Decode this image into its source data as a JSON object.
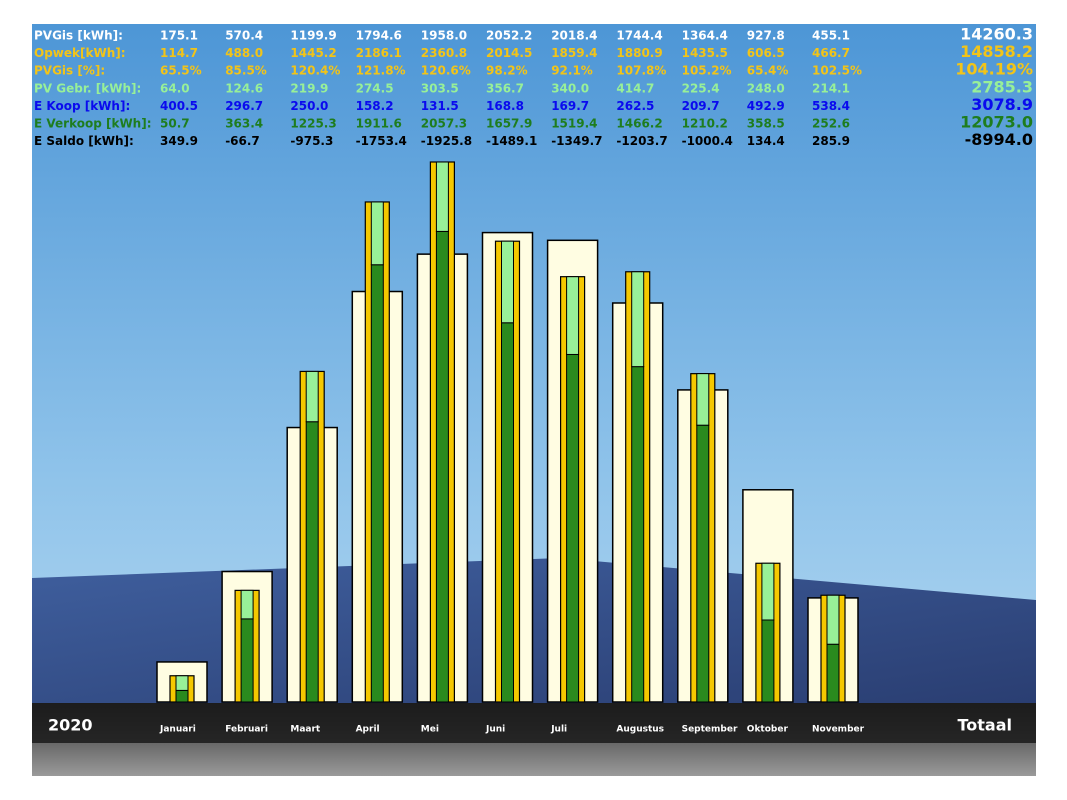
{
  "chart_data": {
    "type": "bar",
    "year": "2020",
    "total_title": "Totaal",
    "categories": [
      "Januari",
      "Februari",
      "Maart",
      "April",
      "Mei",
      "Juni",
      "Juli",
      "Augustus",
      "September",
      "Oktober",
      "November"
    ],
    "series": [
      {
        "name": "PVGis [kWh]:",
        "color": "#ffffff",
        "bar_color": "#fffde2",
        "values": [
          175.1,
          570.4,
          1199.9,
          1794.6,
          1958.0,
          2052.2,
          2018.4,
          1744.4,
          1364.4,
          927.8,
          455.1
        ],
        "value_labels": [
          "175.1",
          "570.4",
          "1199.9",
          "1794.6",
          "1958.0",
          "2052.2",
          "2018.4",
          "1744.4",
          "1364.4",
          "927.8",
          "455.1"
        ],
        "total": 14260.3,
        "total_label": "14260.3"
      },
      {
        "name": "Opwek[kWh]:",
        "color": "#f2c418",
        "bar_color": "#f5c800",
        "values": [
          114.7,
          488.0,
          1445.2,
          2186.1,
          2360.8,
          2014.5,
          1859.4,
          1880.9,
          1435.5,
          606.5,
          466.7
        ],
        "value_labels": [
          "114.7",
          "488.0",
          "1445.2",
          "2186.1",
          "2360.8",
          "2014.5",
          "1859.4",
          "1880.9",
          "1435.5",
          "606.5",
          "466.7"
        ],
        "total": 14858.2,
        "total_label": "14858.2"
      },
      {
        "name": "PVGis [%]:",
        "color": "#f2c418",
        "values": [
          65.5,
          85.5,
          120.4,
          121.8,
          120.6,
          98.2,
          92.1,
          107.8,
          105.2,
          65.4,
          102.5
        ],
        "value_labels": [
          "65.5%",
          "85.5%",
          "120.4%",
          "121.8%",
          "120.6%",
          "98.2%",
          "92.1%",
          "107.8%",
          "105.2%",
          "65.4%",
          "102.5%"
        ],
        "total": 104.19,
        "total_label": "104.19%"
      },
      {
        "name": "PV Gebr. [kWh]:",
        "color": "#98f098",
        "bar_color": "#98f098",
        "values": [
          64.0,
          124.6,
          219.9,
          274.5,
          303.5,
          356.7,
          340.0,
          414.7,
          225.4,
          248.0,
          214.1
        ],
        "value_labels": [
          "64.0",
          "124.6",
          "219.9",
          "274.5",
          "303.5",
          "356.7",
          "340.0",
          "414.7",
          "225.4",
          "248.0",
          "214.1"
        ],
        "total": 2785.3,
        "total_label": "2785.3"
      },
      {
        "name": "E Koop [kWh]:",
        "color": "#0a0aee",
        "values": [
          400.5,
          296.7,
          250.0,
          158.2,
          131.5,
          168.8,
          169.7,
          262.5,
          209.7,
          492.9,
          538.4
        ],
        "value_labels": [
          "400.5",
          "296.7",
          "250.0",
          "158.2",
          "131.5",
          "168.8",
          "169.7",
          "262.5",
          "209.7",
          "492.9",
          "538.4"
        ],
        "total": 3078.9,
        "total_label": "3078.9"
      },
      {
        "name": "E Verkoop [kWh]:",
        "color": "#1e7d1e",
        "bar_color": "#2a8a1e",
        "values": [
          50.7,
          363.4,
          1225.3,
          1911.6,
          2057.3,
          1657.9,
          1519.4,
          1466.2,
          1210.2,
          358.5,
          252.6
        ],
        "value_labels": [
          "50.7",
          "363.4",
          "1225.3",
          "1911.6",
          "2057.3",
          "1657.9",
          "1519.4",
          "1466.2",
          "1210.2",
          "358.5",
          "252.6"
        ],
        "total": 12073.0,
        "total_label": "12073.0"
      },
      {
        "name": "E Saldo [kWh]:",
        "color": "#000000",
        "values": [
          349.9,
          -66.7,
          -975.3,
          -1753.4,
          -1925.8,
          -1489.1,
          -1349.7,
          -1203.7,
          -1000.4,
          134.4,
          285.9
        ],
        "value_labels": [
          "349.9",
          "-66.7",
          "-975.3",
          "-1753.4",
          "-1925.8",
          "-1489.1",
          "-1349.7",
          "-1203.7",
          "-1000.4",
          "134.4",
          "285.9"
        ],
        "total": -8994.0,
        "total_label": "-8994.0"
      }
    ]
  }
}
